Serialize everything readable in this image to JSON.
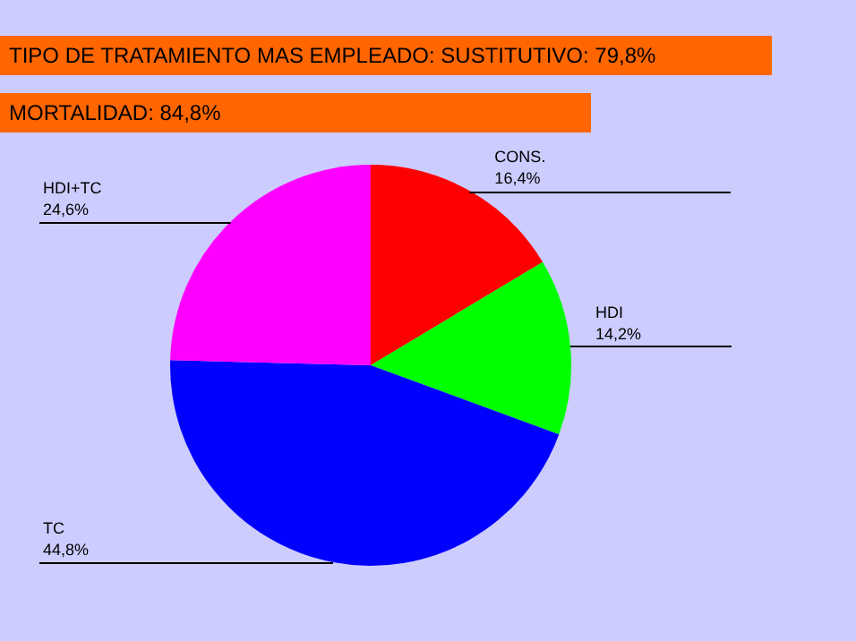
{
  "chart_data": {
    "type": "pie",
    "title": "TIPO DE TRATAMIENTO MAS EMPLEADO: SUSTITUTIVO: 79,8%",
    "subtitle": "MORTALIDAD: 84,8%",
    "categories": [
      "CONS.",
      "HDI",
      "TC",
      "HDI+TC"
    ],
    "values": [
      16.4,
      14.2,
      44.8,
      24.6
    ],
    "value_labels": [
      "16,4%",
      "14,2%",
      "44,8%",
      "24,6%"
    ],
    "colors": [
      "#ff0000",
      "#00ff00",
      "#0000ff",
      "#ff00ff"
    ],
    "legend": false
  }
}
